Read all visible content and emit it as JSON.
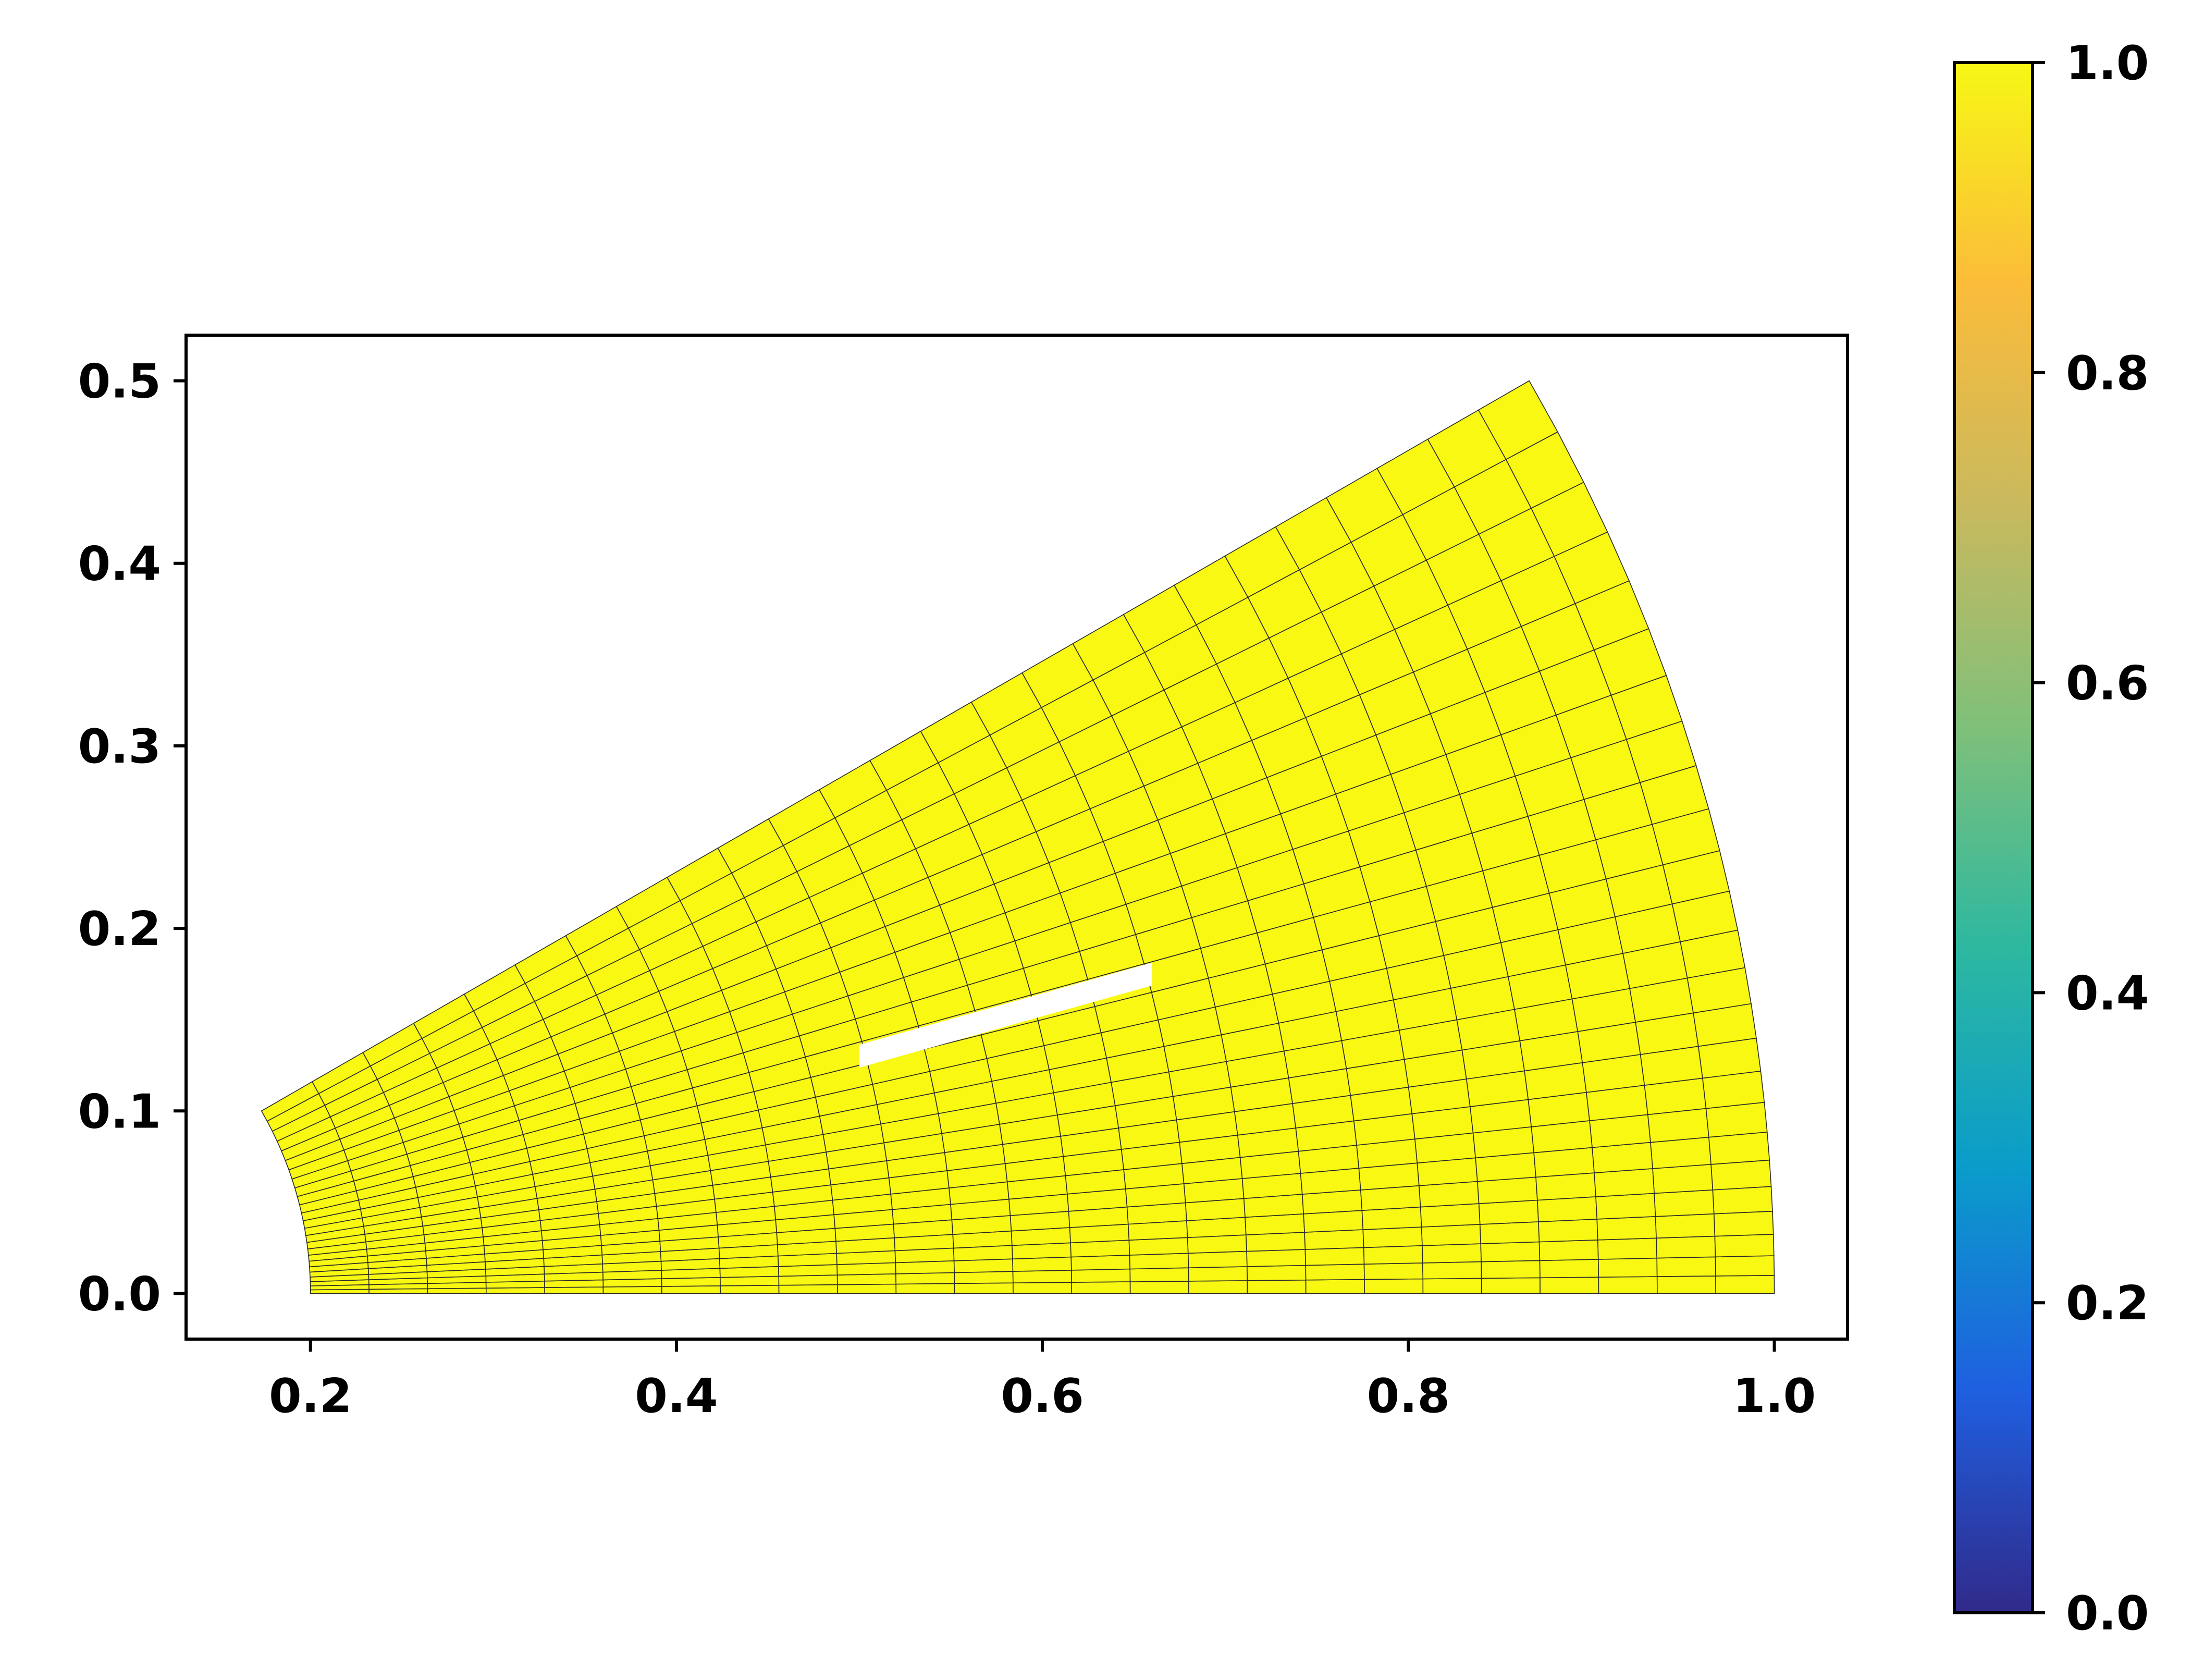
{
  "chart_data": {
    "type": "heatmap",
    "title": "",
    "xlabel": "",
    "ylabel": "",
    "xlim": [
      0.132,
      1.04
    ],
    "ylim": [
      -0.025,
      0.525
    ],
    "x_ticks": [
      0.2,
      0.4,
      0.6,
      0.8,
      1.0
    ],
    "x_tick_labels": [
      "0.2",
      "0.4",
      "0.6",
      "0.8",
      "1.0"
    ],
    "y_ticks": [
      0.0,
      0.1,
      0.2,
      0.3,
      0.4,
      0.5
    ],
    "y_tick_labels": [
      "0.0",
      "0.1",
      "0.2",
      "0.3",
      "0.4",
      "0.5"
    ],
    "mesh": {
      "inner_radius": 0.2,
      "outer_radius": 1.0,
      "angle_start_deg": 0,
      "angle_end_deg": 30,
      "radial_divisions": 25,
      "angular_divisions": 25,
      "angular_grading": "clustered-near-inner-edge",
      "cell_value": 1.0,
      "cell_color": "#f8f812",
      "edge_color": "#2a2a2a"
    },
    "crack": {
      "start": [
        0.5,
        0.13
      ],
      "end": [
        0.66,
        0.175
      ],
      "color": "#ffffff"
    },
    "colorbar": {
      "min": 0.0,
      "max": 1.0,
      "ticks": [
        0.0,
        0.2,
        0.4,
        0.6,
        0.8,
        1.0
      ],
      "tick_labels": [
        "0.0",
        "0.2",
        "0.4",
        "0.6",
        "0.8",
        "1.0"
      ],
      "colormap": [
        "#312a8a",
        "#1f5fe0",
        "#0a9cca",
        "#2db8a0",
        "#7fc07a",
        "#c9b95e",
        "#fbbc3a",
        "#f7f715"
      ]
    }
  }
}
